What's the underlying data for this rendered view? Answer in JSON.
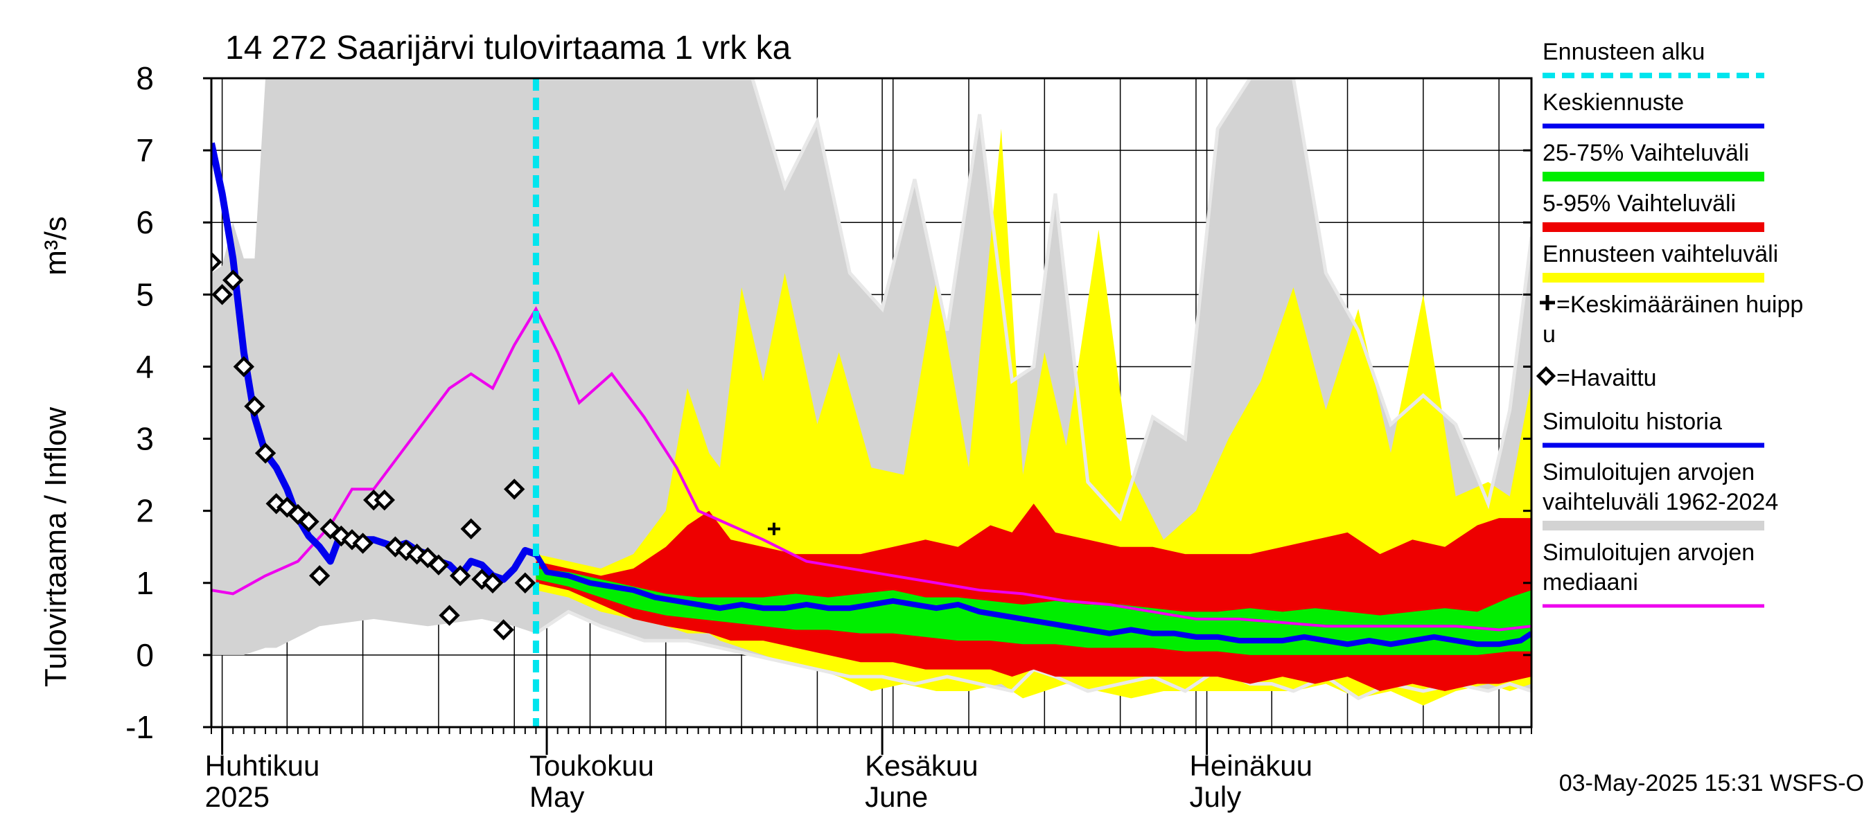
{
  "chart_data": {
    "type": "area",
    "title": "14 272 Saarijärvi tulovirtaama 1 vrk ka",
    "ylabel": "Tulovirtaama / Inflow",
    "yunit": "m³/s",
    "ylim": [
      -1,
      8
    ],
    "yticks": [
      "-1",
      "0",
      "1",
      "2",
      "3",
      "4",
      "5",
      "6",
      "7",
      "8"
    ],
    "xlim": [
      "2025-03-31",
      "2025-07-31"
    ],
    "month_labels": [
      {
        "date": "2025-04-01",
        "line1": "Huhtikuu",
        "line2": "2025"
      },
      {
        "date": "2025-05-01",
        "line1": "Toukokuu",
        "line2": "May"
      },
      {
        "date": "2025-06-01",
        "line1": "Kesäkuu",
        "line2": "June"
      },
      {
        "date": "2025-07-01",
        "line1": "Heinäkuu",
        "line2": "July"
      }
    ],
    "forecast_start": "2025-04-30",
    "footer": "03-May-2025 15:31 WSFS-O",
    "colors": {
      "forecast_start": "#00e5ee",
      "mean_forecast": "#0000ee",
      "band_25_75": "#00ee00",
      "band_5_95": "#ee0000",
      "forecast_range": "#ffff00",
      "observed": "#000000",
      "simulated_history": "#0000ee",
      "historical_range": "#d3d3d3",
      "historical_median": "#ee00ee",
      "historical_range_edge": "#e8e8e8"
    },
    "legend": [
      {
        "key": "forecast_start",
        "text": [
          "Ennusteen alku"
        ],
        "style": "dashed"
      },
      {
        "key": "mean_forecast",
        "text": [
          "Keskiennuste"
        ],
        "style": "line"
      },
      {
        "key": "band_25_75",
        "text": [
          "25-75% Vaihteluväli"
        ],
        "style": "band"
      },
      {
        "key": "band_5_95",
        "text": [
          "5-95% Vaihteluväli"
        ],
        "style": "band"
      },
      {
        "key": "forecast_range",
        "text": [
          "Ennusteen vaihteluväli"
        ],
        "style": "band"
      },
      {
        "key": "mean_peak",
        "text": [
          "=Keskimääräinen huipp",
          "u"
        ],
        "style": "plus"
      },
      {
        "key": "observed",
        "text": [
          "=Havaittu"
        ],
        "style": "diamond"
      },
      {
        "key": "simulated_history",
        "text": [
          "Simuloitu historia"
        ],
        "style": "line"
      },
      {
        "key": "historical_range",
        "text": [
          "Simuloitujen arvojen",
          "vaihteluväli 1962-2024"
        ],
        "style": "band"
      },
      {
        "key": "historical_median",
        "text": [
          "Simuloitujen arvojen",
          "mediaani"
        ],
        "style": "thin"
      }
    ],
    "series": {
      "historical_range": {
        "x": [
          "2025-03-31",
          "2025-04-01",
          "2025-04-02",
          "2025-04-03",
          "2025-04-04",
          "2025-04-05",
          "2025-04-06",
          "2025-04-10",
          "2025-04-15",
          "2025-04-20",
          "2025-04-25",
          "2025-04-28",
          "2025-04-30",
          "2025-05-03",
          "2025-05-06",
          "2025-05-10",
          "2025-05-14",
          "2025-05-17",
          "2025-05-20",
          "2025-05-23",
          "2025-05-26",
          "2025-05-29",
          "2025-06-01",
          "2025-06-04",
          "2025-06-07",
          "2025-06-10",
          "2025-06-13",
          "2025-06-15",
          "2025-06-17",
          "2025-06-20",
          "2025-06-23",
          "2025-06-26",
          "2025-06-29",
          "2025-07-02",
          "2025-07-05",
          "2025-07-07",
          "2025-07-09",
          "2025-07-12",
          "2025-07-15",
          "2025-07-18",
          "2025-07-21",
          "2025-07-24",
          "2025-07-27",
          "2025-07-29",
          "2025-07-31"
        ],
        "upper": [
          5.3,
          5.4,
          6.0,
          5.5,
          5.5,
          8.0,
          8.0,
          8.0,
          8.0,
          8.0,
          8.0,
          8.0,
          8.0,
          8.0,
          8.0,
          8.0,
          8.0,
          8.0,
          8.0,
          6.5,
          7.4,
          5.3,
          4.8,
          6.6,
          4.5,
          7.5,
          3.8,
          4.0,
          6.4,
          2.4,
          1.9,
          3.3,
          3.0,
          7.3,
          8.0,
          8.0,
          8.0,
          5.3,
          4.5,
          3.2,
          3.6,
          3.2,
          2.1,
          3.4,
          5.8
        ],
        "lower": [
          0.0,
          0.0,
          0.0,
          0.0,
          0.05,
          0.1,
          0.1,
          0.4,
          0.5,
          0.4,
          0.5,
          0.4,
          0.3,
          0.6,
          0.4,
          0.2,
          0.2,
          0.1,
          0.0,
          -0.1,
          -0.2,
          -0.3,
          -0.3,
          -0.4,
          -0.3,
          -0.4,
          -0.5,
          -0.2,
          -0.3,
          -0.5,
          -0.4,
          -0.3,
          -0.5,
          -0.2,
          -0.4,
          -0.4,
          -0.5,
          -0.3,
          -0.6,
          -0.4,
          -0.5,
          -0.4,
          -0.5,
          -0.4,
          -0.5
        ]
      },
      "forecast_range": {
        "x": [
          "2025-04-30",
          "2025-05-03",
          "2025-05-06",
          "2025-05-09",
          "2025-05-12",
          "2025-05-14",
          "2025-05-16",
          "2025-05-17",
          "2025-05-19",
          "2025-05-21",
          "2025-05-23",
          "2025-05-26",
          "2025-05-28",
          "2025-05-31",
          "2025-06-03",
          "2025-06-06",
          "2025-06-09",
          "2025-06-12",
          "2025-06-14",
          "2025-06-16",
          "2025-06-18",
          "2025-06-21",
          "2025-06-24",
          "2025-06-27",
          "2025-06-30",
          "2025-07-03",
          "2025-07-06",
          "2025-07-09",
          "2025-07-12",
          "2025-07-15",
          "2025-07-18",
          "2025-07-21",
          "2025-07-24",
          "2025-07-27",
          "2025-07-29",
          "2025-07-31"
        ],
        "upper": [
          1.4,
          1.3,
          1.2,
          1.4,
          2.0,
          3.7,
          2.8,
          2.6,
          5.1,
          3.8,
          5.3,
          3.2,
          4.2,
          2.6,
          2.5,
          5.2,
          2.6,
          7.3,
          2.5,
          4.2,
          2.9,
          5.9,
          2.5,
          1.6,
          2.0,
          3.0,
          3.8,
          5.1,
          3.4,
          4.8,
          2.8,
          5.0,
          2.2,
          2.4,
          2.2,
          3.8
        ],
        "lower": [
          0.9,
          0.8,
          0.6,
          0.5,
          0.4,
          0.3,
          0.3,
          0.2,
          0.1,
          0.0,
          -0.1,
          -0.2,
          -0.3,
          -0.5,
          -0.4,
          -0.5,
          -0.5,
          -0.4,
          -0.6,
          -0.5,
          -0.4,
          -0.5,
          -0.6,
          -0.5,
          -0.5,
          -0.5,
          -0.5,
          -0.5,
          -0.4,
          -0.6,
          -0.5,
          -0.7,
          -0.5,
          -0.4,
          -0.5,
          -0.4
        ]
      },
      "band_5_95": {
        "x": [
          "2025-04-30",
          "2025-05-03",
          "2025-05-06",
          "2025-05-09",
          "2025-05-12",
          "2025-05-14",
          "2025-05-16",
          "2025-05-18",
          "2025-05-21",
          "2025-05-24",
          "2025-05-27",
          "2025-05-30",
          "2025-06-02",
          "2025-06-05",
          "2025-06-08",
          "2025-06-11",
          "2025-06-13",
          "2025-06-15",
          "2025-06-17",
          "2025-06-20",
          "2025-06-23",
          "2025-06-26",
          "2025-06-29",
          "2025-07-02",
          "2025-07-05",
          "2025-07-08",
          "2025-07-11",
          "2025-07-14",
          "2025-07-17",
          "2025-07-20",
          "2025-07-23",
          "2025-07-26",
          "2025-07-28",
          "2025-07-31"
        ],
        "upper": [
          1.3,
          1.2,
          1.1,
          1.2,
          1.5,
          1.8,
          2.0,
          1.6,
          1.5,
          1.4,
          1.4,
          1.4,
          1.5,
          1.6,
          1.5,
          1.8,
          1.7,
          2.1,
          1.7,
          1.6,
          1.5,
          1.5,
          1.4,
          1.4,
          1.4,
          1.5,
          1.6,
          1.7,
          1.4,
          1.6,
          1.5,
          1.8,
          1.9,
          1.9
        ],
        "lower": [
          1.0,
          0.9,
          0.7,
          0.5,
          0.4,
          0.35,
          0.3,
          0.2,
          0.2,
          0.1,
          0.0,
          -0.1,
          -0.1,
          -0.2,
          -0.2,
          -0.2,
          -0.3,
          -0.2,
          -0.3,
          -0.3,
          -0.3,
          -0.3,
          -0.3,
          -0.3,
          -0.4,
          -0.3,
          -0.4,
          -0.3,
          -0.5,
          -0.4,
          -0.5,
          -0.4,
          -0.4,
          -0.3
        ]
      },
      "band_25_75": {
        "x": [
          "2025-04-30",
          "2025-05-03",
          "2025-05-06",
          "2025-05-09",
          "2025-05-12",
          "2025-05-15",
          "2025-05-18",
          "2025-05-21",
          "2025-05-24",
          "2025-05-27",
          "2025-05-30",
          "2025-06-02",
          "2025-06-05",
          "2025-06-08",
          "2025-06-11",
          "2025-06-14",
          "2025-06-17",
          "2025-06-20",
          "2025-06-23",
          "2025-06-26",
          "2025-06-29",
          "2025-07-02",
          "2025-07-05",
          "2025-07-08",
          "2025-07-11",
          "2025-07-14",
          "2025-07-17",
          "2025-07-20",
          "2025-07-23",
          "2025-07-26",
          "2025-07-29",
          "2025-07-31"
        ],
        "upper": [
          1.2,
          1.15,
          1.05,
          0.95,
          0.85,
          0.8,
          0.8,
          0.8,
          0.85,
          0.8,
          0.85,
          0.9,
          0.8,
          0.8,
          0.75,
          0.7,
          0.75,
          0.7,
          0.7,
          0.65,
          0.6,
          0.6,
          0.65,
          0.6,
          0.65,
          0.6,
          0.55,
          0.6,
          0.65,
          0.6,
          0.8,
          0.9
        ],
        "lower": [
          1.05,
          0.95,
          0.8,
          0.65,
          0.55,
          0.5,
          0.45,
          0.4,
          0.35,
          0.35,
          0.3,
          0.3,
          0.25,
          0.2,
          0.2,
          0.15,
          0.15,
          0.1,
          0.1,
          0.1,
          0.05,
          0.05,
          0.0,
          0.0,
          0.0,
          0.0,
          0.0,
          0.0,
          0.0,
          0.0,
          0.05,
          0.05
        ]
      },
      "mean_forecast": {
        "x": [
          "2025-04-30",
          "2025-05-01",
          "2025-05-03",
          "2025-05-05",
          "2025-05-07",
          "2025-05-09",
          "2025-05-11",
          "2025-05-13",
          "2025-05-15",
          "2025-05-17",
          "2025-05-19",
          "2025-05-21",
          "2025-05-23",
          "2025-05-25",
          "2025-05-27",
          "2025-05-29",
          "2025-05-31",
          "2025-06-02",
          "2025-06-04",
          "2025-06-06",
          "2025-06-08",
          "2025-06-10",
          "2025-06-12",
          "2025-06-14",
          "2025-06-16",
          "2025-06-18",
          "2025-06-20",
          "2025-06-22",
          "2025-06-24",
          "2025-06-26",
          "2025-06-28",
          "2025-06-30",
          "2025-07-02",
          "2025-07-04",
          "2025-07-06",
          "2025-07-08",
          "2025-07-10",
          "2025-07-12",
          "2025-07-14",
          "2025-07-16",
          "2025-07-18",
          "2025-07-20",
          "2025-07-22",
          "2025-07-24",
          "2025-07-26",
          "2025-07-28",
          "2025-07-30",
          "2025-07-31"
        ],
        "y": [
          1.4,
          1.15,
          1.1,
          1.0,
          0.95,
          0.9,
          0.8,
          0.75,
          0.7,
          0.65,
          0.7,
          0.65,
          0.65,
          0.7,
          0.65,
          0.65,
          0.7,
          0.75,
          0.7,
          0.65,
          0.7,
          0.6,
          0.55,
          0.5,
          0.45,
          0.4,
          0.35,
          0.3,
          0.35,
          0.3,
          0.3,
          0.25,
          0.25,
          0.2,
          0.2,
          0.2,
          0.25,
          0.2,
          0.15,
          0.2,
          0.15,
          0.2,
          0.25,
          0.2,
          0.15,
          0.15,
          0.2,
          0.3
        ]
      },
      "historical_median": {
        "x": [
          "2025-03-31",
          "2025-04-02",
          "2025-04-05",
          "2025-04-08",
          "2025-04-11",
          "2025-04-13",
          "2025-04-15",
          "2025-04-18",
          "2025-04-20",
          "2025-04-22",
          "2025-04-24",
          "2025-04-26",
          "2025-04-28",
          "2025-04-30",
          "2025-05-02",
          "2025-05-04",
          "2025-05-07",
          "2025-05-10",
          "2025-05-13",
          "2025-05-15",
          "2025-05-18",
          "2025-05-21",
          "2025-05-25",
          "2025-05-29",
          "2025-06-02",
          "2025-06-06",
          "2025-06-10",
          "2025-06-14",
          "2025-06-18",
          "2025-06-22",
          "2025-06-26",
          "2025-06-30",
          "2025-07-04",
          "2025-07-08",
          "2025-07-12",
          "2025-07-16",
          "2025-07-20",
          "2025-07-24",
          "2025-07-28",
          "2025-07-31"
        ],
        "y": [
          0.9,
          0.85,
          1.1,
          1.3,
          1.8,
          2.3,
          2.3,
          2.9,
          3.3,
          3.7,
          3.9,
          3.7,
          4.3,
          4.8,
          4.2,
          3.5,
          3.9,
          3.3,
          2.6,
          2.0,
          1.8,
          1.6,
          1.3,
          1.2,
          1.1,
          1.0,
          0.9,
          0.85,
          0.75,
          0.7,
          0.6,
          0.5,
          0.5,
          0.45,
          0.4,
          0.4,
          0.4,
          0.4,
          0.35,
          0.4
        ]
      },
      "simulated_history": {
        "x": [
          "2025-03-31",
          "2025-04-01",
          "2025-04-02",
          "2025-04-03",
          "2025-04-04",
          "2025-04-05",
          "2025-04-06",
          "2025-04-07",
          "2025-04-08",
          "2025-04-09",
          "2025-04-10",
          "2025-04-11",
          "2025-04-12",
          "2025-04-13",
          "2025-04-14",
          "2025-04-15",
          "2025-04-16",
          "2025-04-17",
          "2025-04-18",
          "2025-04-19",
          "2025-04-20",
          "2025-04-21",
          "2025-04-22",
          "2025-04-23",
          "2025-04-24",
          "2025-04-25",
          "2025-04-26",
          "2025-04-27",
          "2025-04-28",
          "2025-04-29",
          "2025-04-30"
        ],
        "y": [
          7.1,
          6.4,
          5.5,
          4.2,
          3.3,
          2.8,
          2.6,
          2.3,
          1.9,
          1.65,
          1.5,
          1.3,
          1.7,
          1.6,
          1.6,
          1.6,
          1.55,
          1.5,
          1.55,
          1.45,
          1.4,
          1.3,
          1.25,
          1.1,
          1.3,
          1.25,
          1.1,
          1.05,
          1.2,
          1.45,
          1.4
        ]
      },
      "observed": {
        "x": [
          "2025-03-31",
          "2025-04-01",
          "2025-04-02",
          "2025-04-03",
          "2025-04-04",
          "2025-04-05",
          "2025-04-06",
          "2025-04-07",
          "2025-04-08",
          "2025-04-09",
          "2025-04-10",
          "2025-04-11",
          "2025-04-12",
          "2025-04-13",
          "2025-04-14",
          "2025-04-15",
          "2025-04-16",
          "2025-04-17",
          "2025-04-18",
          "2025-04-19",
          "2025-04-20",
          "2025-04-21",
          "2025-04-22",
          "2025-04-23",
          "2025-04-24",
          "2025-04-25",
          "2025-04-26",
          "2025-04-27",
          "2025-04-28",
          "2025-04-29"
        ],
        "y": [
          5.45,
          5.0,
          5.2,
          4.0,
          3.45,
          2.8,
          2.1,
          2.05,
          1.95,
          1.85,
          1.1,
          1.75,
          1.65,
          1.6,
          1.55,
          2.15,
          2.15,
          1.5,
          1.45,
          1.4,
          1.35,
          1.25,
          0.55,
          1.1,
          1.75,
          1.05,
          1.0,
          0.35,
          2.3,
          1.0
        ]
      },
      "mean_peak": {
        "x": "2025-05-22",
        "y": 1.75
      }
    }
  }
}
